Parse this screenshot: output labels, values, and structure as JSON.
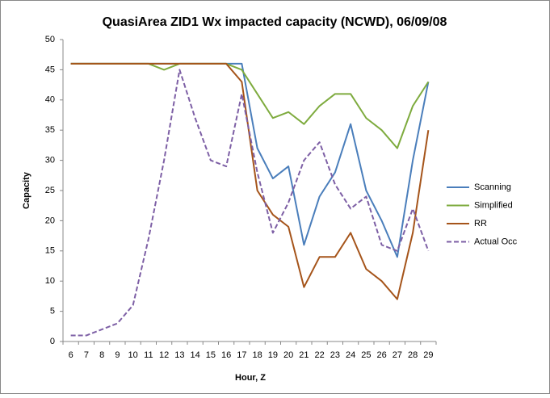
{
  "chart_data": {
    "type": "line",
    "title": "QuasiArea ZID1 Wx impacted capacity (NCWD), 06/09/08",
    "x_label": "Hour, Z",
    "y_label": "Capacity",
    "categories": [
      6,
      7,
      8,
      9,
      10,
      11,
      12,
      13,
      14,
      15,
      16,
      17,
      18,
      19,
      20,
      21,
      22,
      23,
      24,
      25,
      26,
      27,
      28,
      29
    ],
    "series": [
      {
        "name": "Scanning",
        "color": "#4a7ebb",
        "dash": false,
        "values": [
          46,
          46,
          46,
          46,
          46,
          46,
          46,
          46,
          46,
          46,
          46,
          46,
          32,
          27,
          29,
          16,
          24,
          28,
          36,
          25,
          20,
          14,
          30,
          43
        ]
      },
      {
        "name": "Simplified",
        "color": "#7eab3e",
        "dash": false,
        "values": [
          46,
          46,
          46,
          46,
          46,
          46,
          45,
          46,
          46,
          46,
          46,
          45,
          41,
          37,
          38,
          36,
          39,
          41,
          41,
          37,
          35,
          32,
          39,
          43
        ]
      },
      {
        "name": "RR",
        "color": "#a5541a",
        "dash": false,
        "values": [
          46,
          46,
          46,
          46,
          46,
          46,
          46,
          46,
          46,
          46,
          46,
          43,
          25,
          21,
          19,
          9,
          14,
          14,
          18,
          12,
          10,
          7,
          18,
          35
        ]
      },
      {
        "name": "Actual Occ",
        "color": "#7d5fa5",
        "dash": true,
        "values": [
          1,
          1,
          2,
          3,
          6,
          17,
          30,
          45,
          37,
          30,
          29,
          41,
          28,
          18,
          23,
          30,
          33,
          26,
          22,
          24,
          16,
          15,
          22,
          15
        ]
      }
    ],
    "ylim": [
      0,
      50
    ],
    "yticks": [
      0,
      5,
      10,
      15,
      20,
      25,
      30,
      35,
      40,
      45,
      50
    ],
    "grid": false,
    "legend": "right"
  }
}
